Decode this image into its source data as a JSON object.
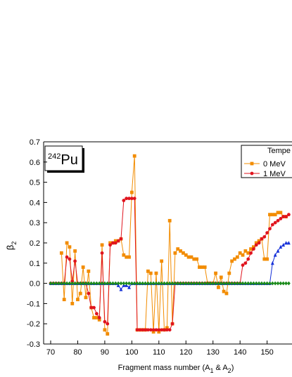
{
  "chart_data": {
    "type": "line",
    "annotation": {
      "mass": "242",
      "element": "Pu"
    },
    "ylabel": {
      "symbol": "β",
      "sub": "2"
    },
    "xlabel_parts": [
      "Fragment mass number (A",
      "1",
      " & A",
      "2",
      ")"
    ],
    "legend_title": "Tempe",
    "legend_position": "upper right",
    "x": [
      70,
      71,
      72,
      73,
      74,
      75,
      76,
      77,
      78,
      79,
      80,
      81,
      82,
      83,
      84,
      85,
      86,
      87,
      88,
      89,
      90,
      91,
      92,
      93,
      94,
      95,
      96,
      97,
      98,
      99,
      100,
      101,
      102,
      103,
      104,
      105,
      106,
      107,
      108,
      109,
      110,
      111,
      112,
      113,
      114,
      115,
      116,
      117,
      118,
      119,
      120,
      121,
      122,
      123,
      124,
      125,
      126,
      127,
      128,
      129,
      130,
      131,
      132,
      133,
      134,
      135,
      136,
      137,
      138,
      139,
      140,
      141,
      142,
      143,
      144,
      145,
      146,
      147,
      148,
      149,
      150,
      151,
      152,
      153,
      154,
      155,
      156,
      157,
      158
    ],
    "series": [
      {
        "name": "0 MeV",
        "color": "#f28c00",
        "marker": "square",
        "values": [
          null,
          null,
          null,
          null,
          0.15,
          -0.08,
          0.2,
          0.18,
          -0.1,
          0.16,
          -0.08,
          -0.05,
          0.08,
          -0.07,
          0.06,
          -0.12,
          -0.17,
          -0.17,
          -0.18,
          0.19,
          -0.23,
          -0.25,
          0.2,
          0.2,
          0.21,
          0.21,
          0.22,
          0.14,
          0.13,
          0.13,
          0.45,
          0.63,
          -0.23,
          -0.23,
          -0.23,
          -0.23,
          0.06,
          0.05,
          -0.24,
          0.05,
          -0.24,
          0.11,
          -0.23,
          -0.22,
          0.31,
          -0.2,
          0.15,
          0.17,
          0.16,
          0.15,
          0.14,
          0.13,
          0.13,
          0.12,
          0.12,
          0.08,
          0.08,
          0.08,
          0,
          0,
          0,
          0.05,
          -0.02,
          0.03,
          -0.04,
          -0.05,
          0.05,
          0.11,
          0.12,
          0.13,
          0.15,
          0.14,
          0.16,
          0.15,
          0.17,
          0.18,
          0.2,
          0.21,
          0.22,
          0.12,
          0.12,
          0.34,
          0.34,
          0.34,
          0.35,
          0.35,
          0.33,
          0.33,
          null
        ]
      },
      {
        "name": "1 MeV",
        "color": "#e0141e",
        "marker": "circle",
        "values": [
          0,
          0,
          0,
          0,
          0,
          0,
          0.13,
          0.12,
          0.01,
          0.11,
          0,
          0,
          0,
          0,
          -0.05,
          -0.12,
          -0.12,
          -0.15,
          -0.17,
          0.15,
          -0.19,
          -0.2,
          0.19,
          0.2,
          0.2,
          0.21,
          0.22,
          0.41,
          0.42,
          0.42,
          0.42,
          0.42,
          -0.23,
          -0.23,
          -0.23,
          -0.23,
          -0.23,
          -0.23,
          -0.23,
          -0.23,
          -0.23,
          -0.23,
          -0.23,
          -0.23,
          -0.23,
          -0.2,
          0,
          0,
          0,
          0,
          0,
          0,
          0,
          0,
          0,
          0,
          0,
          0,
          0,
          0,
          0,
          0,
          0,
          0,
          0,
          0,
          0,
          0,
          0,
          0,
          0,
          0.09,
          0.1,
          0.12,
          0.15,
          0.17,
          0.19,
          0.2,
          0.22,
          0.23,
          0.25,
          0.27,
          0.29,
          0.3,
          0.31,
          0.32,
          0.33,
          0.33,
          0.34
        ]
      },
      {
        "color": "#1530d8",
        "marker": "triangle",
        "values": [
          0,
          0,
          0,
          0,
          0,
          0,
          0,
          0,
          0,
          0,
          0,
          0,
          0,
          0,
          0,
          0,
          0,
          0,
          0,
          0,
          0,
          0,
          0,
          0,
          0,
          -0.01,
          -0.03,
          -0.01,
          -0.01,
          -0.02,
          0,
          0,
          0,
          0,
          0,
          0,
          0,
          0,
          0,
          0,
          0,
          0,
          0,
          0,
          0,
          0,
          0,
          0,
          0,
          0,
          0,
          0,
          0,
          0,
          0,
          0,
          0,
          0,
          0,
          0,
          0,
          0,
          0,
          0,
          0,
          0,
          0,
          0,
          0,
          0,
          0,
          0,
          0,
          0,
          0,
          0,
          0,
          0,
          0,
          0,
          0,
          0,
          0.1,
          0.14,
          0.16,
          0.18,
          0.19,
          0.2,
          0.2
        ]
      },
      {
        "color": "#1a8a1a",
        "marker": "diamond",
        "values": [
          0,
          0,
          0,
          0,
          0,
          0,
          0,
          0,
          0,
          0,
          0,
          0,
          0,
          0,
          0,
          0,
          0,
          0,
          0,
          0,
          0,
          0,
          0,
          0,
          0,
          0,
          0,
          0,
          0,
          0,
          0,
          0,
          0,
          0,
          0,
          0,
          0,
          0,
          0,
          0,
          0,
          0,
          0,
          0,
          0,
          0,
          0,
          0,
          0,
          0,
          0,
          0,
          0,
          0,
          0,
          0,
          0,
          0,
          0,
          0,
          0,
          0,
          0,
          0,
          0,
          0,
          0,
          0,
          0,
          0,
          0,
          0,
          0,
          0,
          0,
          0,
          0,
          0,
          0,
          0,
          0,
          0,
          0,
          0,
          0,
          0,
          0,
          0,
          0
        ]
      }
    ],
    "xlim": [
      67.4,
      159.2
    ],
    "xticks": [
      70,
      80,
      90,
      100,
      110,
      120,
      130,
      140,
      150
    ],
    "ylim": [
      -0.3,
      0.7
    ],
    "yticks": [
      -0.3,
      -0.2,
      -0.1,
      {
        "value": 0,
        "label": "0.0"
      },
      0.1,
      0.2,
      0.3,
      0.4,
      0.5,
      0.6,
      0.7
    ]
  }
}
